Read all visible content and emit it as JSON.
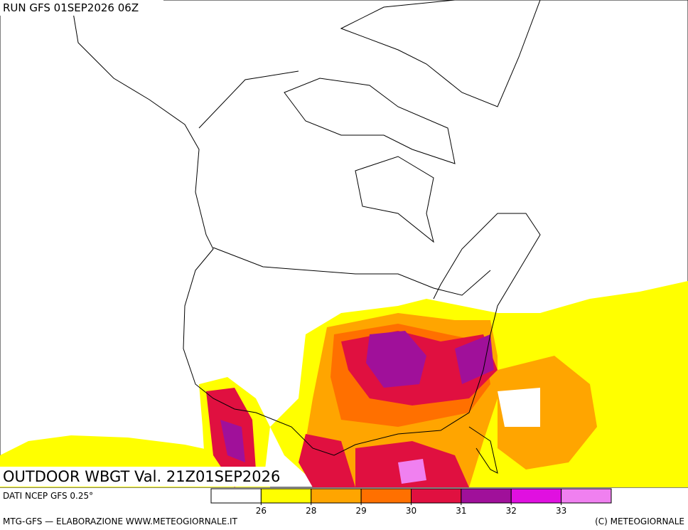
{
  "header": {
    "run": "RUN GFS 01SEP2026 06Z"
  },
  "map": {
    "title": "OUTDOOR WBGT Val. 21Z01SEP2026"
  },
  "footer": {
    "source": "DATI NCEP GFS 0.25°",
    "credit": "MTG-GFS — ELABORAZIONE WWW.METEOGIORNALE.IT",
    "copyright": "(C) METEOGIORNALE"
  },
  "legend": {
    "colors": [
      "#ffffff",
      "#ffff00",
      "#ffa500",
      "#ff7000",
      "#e01040",
      "#a0109a",
      "#e010e0",
      "#f080f0"
    ],
    "ticks": [
      26,
      28,
      29,
      30,
      31,
      32,
      33
    ]
  }
}
